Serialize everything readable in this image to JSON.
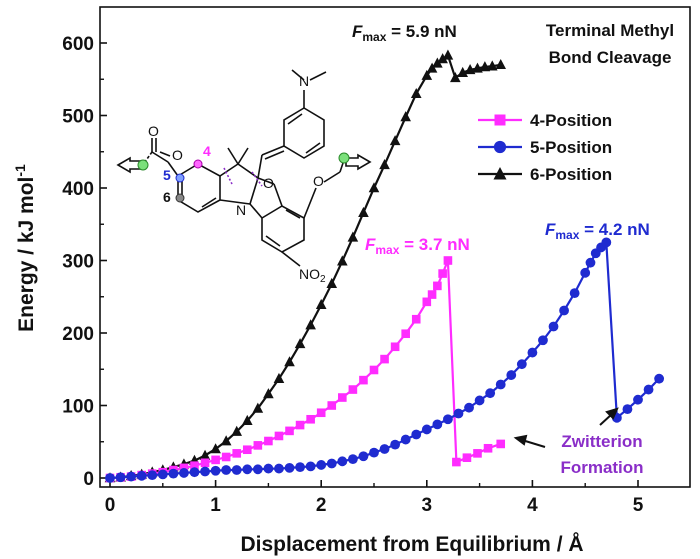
{
  "chart_data": {
    "type": "line",
    "xlabel": "Displacement from Equilibrium / Å",
    "ylabel_main": "Energy / kJ mol",
    "ylabel_sup": "-1",
    "xlim": [
      -0.1,
      5.4
    ],
    "ylim": [
      -10,
      640
    ],
    "xticks": [
      0,
      1,
      2,
      3,
      4,
      5
    ],
    "yticks": [
      0,
      100,
      200,
      300,
      400,
      500,
      600
    ],
    "grid": false,
    "legend_position": "right",
    "series": [
      {
        "name": "4-Position",
        "color": "#ff2cff",
        "marker": "square",
        "x": [
          0.0,
          0.1,
          0.2,
          0.3,
          0.4,
          0.5,
          0.6,
          0.7,
          0.8,
          0.9,
          1.0,
          1.1,
          1.2,
          1.3,
          1.4,
          1.5,
          1.6,
          1.7,
          1.8,
          1.9,
          2.0,
          2.1,
          2.2,
          2.3,
          2.4,
          2.5,
          2.6,
          2.7,
          2.8,
          2.9,
          3.0,
          3.05,
          3.1,
          3.15,
          3.2,
          3.28,
          3.38,
          3.48,
          3.58,
          3.7
        ],
        "y": [
          0,
          1,
          2,
          4,
          6,
          8,
          11,
          14,
          17,
          21,
          25,
          29,
          34,
          39,
          45,
          51,
          58,
          65,
          73,
          81,
          90,
          100,
          111,
          122,
          135,
          149,
          164,
          181,
          199,
          219,
          243,
          253,
          265,
          282,
          300,
          22,
          28,
          34,
          41,
          47
        ]
      },
      {
        "name": "5-Position",
        "color": "#1f2bd0",
        "marker": "circle",
        "x": [
          0.0,
          0.1,
          0.2,
          0.3,
          0.4,
          0.5,
          0.6,
          0.7,
          0.8,
          0.9,
          1.0,
          1.1,
          1.2,
          1.3,
          1.4,
          1.5,
          1.6,
          1.7,
          1.8,
          1.9,
          2.0,
          2.1,
          2.2,
          2.3,
          2.4,
          2.5,
          2.6,
          2.7,
          2.8,
          2.9,
          3.0,
          3.1,
          3.2,
          3.3,
          3.4,
          3.5,
          3.6,
          3.7,
          3.8,
          3.9,
          4.0,
          4.1,
          4.2,
          4.3,
          4.4,
          4.5,
          4.55,
          4.6,
          4.65,
          4.7,
          4.8,
          4.9,
          5.0,
          5.1,
          5.2
        ],
        "y": [
          0,
          1,
          2,
          3,
          4,
          5,
          6,
          7,
          8,
          9,
          10,
          11,
          11,
          12,
          12,
          13,
          13,
          14,
          15,
          16,
          18,
          20,
          23,
          26,
          30,
          35,
          40,
          46,
          53,
          60,
          67,
          74,
          81,
          89,
          97,
          107,
          117,
          129,
          142,
          157,
          173,
          190,
          209,
          231,
          255,
          283,
          297,
          310,
          318,
          325,
          83,
          95,
          108,
          122,
          137
        ]
      },
      {
        "name": "6-Position",
        "color": "#111111",
        "marker": "triangle",
        "x": [
          0.0,
          0.1,
          0.2,
          0.3,
          0.4,
          0.5,
          0.6,
          0.7,
          0.8,
          0.9,
          1.0,
          1.1,
          1.2,
          1.3,
          1.4,
          1.5,
          1.6,
          1.7,
          1.8,
          1.9,
          2.0,
          2.1,
          2.2,
          2.3,
          2.4,
          2.5,
          2.6,
          2.7,
          2.8,
          2.9,
          3.0,
          3.05,
          3.1,
          3.15,
          3.2,
          3.27,
          3.34,
          3.41,
          3.48,
          3.55,
          3.62,
          3.7
        ],
        "y": [
          0,
          1,
          3,
          5,
          8,
          11,
          15,
          19,
          24,
          31,
          40,
          51,
          64,
          79,
          96,
          116,
          137,
          160,
          185,
          211,
          239,
          268,
          299,
          332,
          366,
          400,
          432,
          465,
          498,
          530,
          555,
          565,
          572,
          578,
          583,
          552,
          559,
          563,
          565,
          567,
          568,
          570
        ]
      }
    ],
    "annotations": [
      {
        "id": "fmax-6",
        "prefix": "F",
        "sub": "max",
        "value": " = 5.9 nN",
        "color": "#111111"
      },
      {
        "id": "fmax-4",
        "prefix": "F",
        "sub": "max",
        "value": " = 3.7 nN",
        "color": "#ff2cff"
      },
      {
        "id": "fmax-5",
        "prefix": "F",
        "sub": "max",
        "value": " = 4.2 nN",
        "color": "#1f2bd0"
      },
      {
        "id": "terminal",
        "lines": [
          "Terminal Methyl",
          "Bond Cleavage"
        ],
        "color": "#111111"
      },
      {
        "id": "zwitterion",
        "lines": [
          "Zwitterion",
          "Formation"
        ],
        "color": "#8a2ec8"
      }
    ],
    "molecule_labels": {
      "pos4": "4",
      "pos5": "5",
      "pos6": "6",
      "oxygen_ring": "O",
      "nitrogen": "N",
      "carbonyl_o": "O",
      "ester_o": "O",
      "ether_o": "O",
      "nitro": "NO",
      "nitro_sub": "2",
      "amine": "N"
    }
  }
}
